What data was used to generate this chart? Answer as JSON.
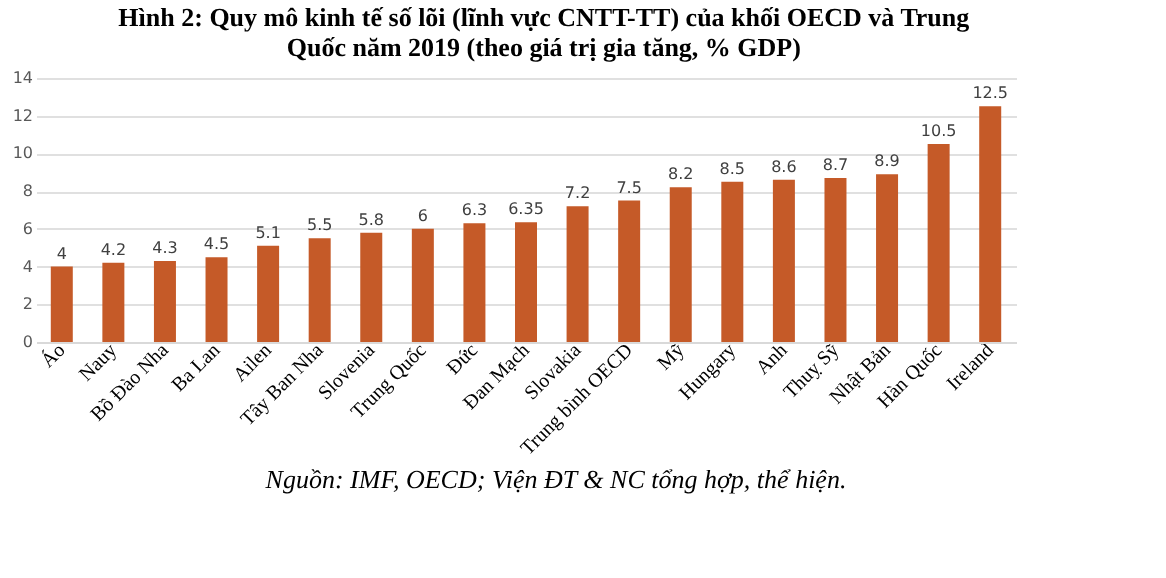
{
  "chart_data": {
    "type": "bar",
    "title": "Hình 2: Quy mô kinh tế số lõi (lĩnh vực CNTT-TT) của khối OECD và Trung Quốc năm 2019 (theo giá trị gia tăng, % GDP)",
    "categories": [
      "Áo",
      "Nauy",
      "Bồ Đào Nha",
      "Ba Lan",
      "Ailen",
      "Tây Ban Nha",
      "Slovenia",
      "Trung Quốc",
      "Đức",
      "Đan Mạch",
      "Slovakia",
      "Trung bình OECD",
      "Mỹ",
      "Hungary",
      "Anh",
      "Thuỵ Sỹ",
      "Nhật Bản",
      "Hàn Quốc",
      "Ireland"
    ],
    "values": [
      4,
      4.2,
      4.3,
      4.5,
      5.1,
      5.5,
      5.8,
      6,
      6.3,
      6.35,
      7.2,
      7.5,
      8.2,
      8.5,
      8.6,
      8.7,
      8.9,
      10.5,
      12.5
    ],
    "color": "#c55a28",
    "ylim": [
      0,
      14
    ],
    "yticks": [
      0,
      2,
      4,
      6,
      8,
      10,
      12,
      14
    ],
    "grid": "y",
    "data_labels": true,
    "annotations": [
      "Nguồn: IMF, OECD; Viện ĐT & NC tổng hợp, thể hiện."
    ]
  }
}
